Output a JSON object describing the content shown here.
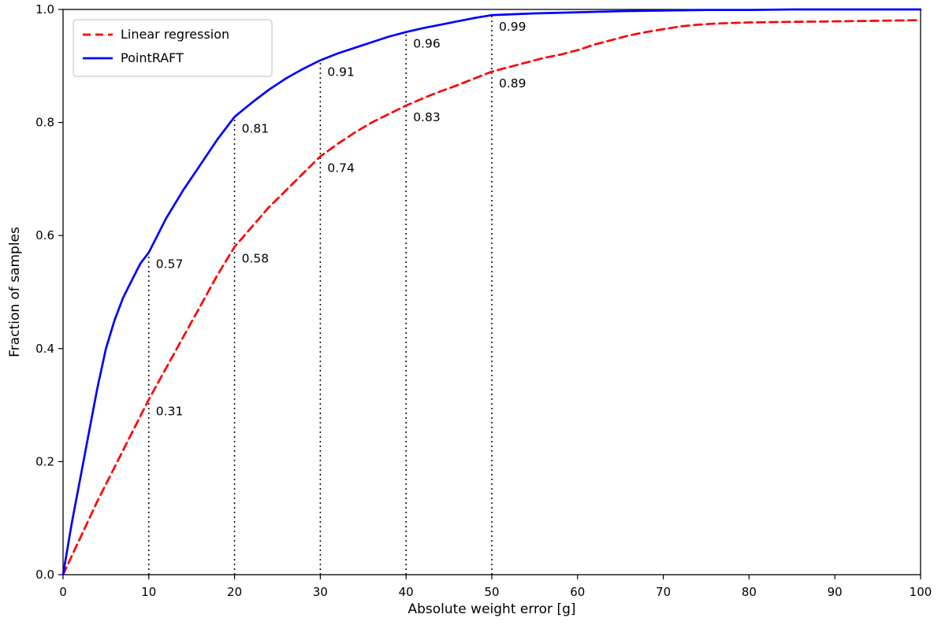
{
  "chart_data": {
    "type": "line",
    "title": "",
    "xlabel": "Absolute weight error [g]",
    "ylabel": "Fraction of samples",
    "xlim": [
      0,
      100
    ],
    "ylim": [
      0.0,
      1.0
    ],
    "x_ticks": [
      0,
      10,
      20,
      30,
      40,
      50,
      60,
      70,
      80,
      90,
      100
    ],
    "y_ticks": [
      0.0,
      0.2,
      0.4,
      0.6,
      0.8,
      1.0
    ],
    "grid": false,
    "legend_position": "upper-left",
    "series": [
      {
        "name": "Linear regression",
        "color": "#ff0000",
        "style": "dashed",
        "x": [
          0,
          2,
          4,
          6,
          8,
          10,
          12,
          14,
          16,
          18,
          20,
          22,
          24,
          26,
          28,
          30,
          32,
          34,
          36,
          38,
          40,
          42,
          44,
          46,
          48,
          50,
          52,
          54,
          56,
          58,
          60,
          62,
          64,
          66,
          68,
          70,
          72,
          74,
          76,
          78,
          80,
          85,
          90,
          95,
          100
        ],
        "y": [
          0.0,
          0.065,
          0.13,
          0.19,
          0.25,
          0.31,
          0.365,
          0.42,
          0.475,
          0.53,
          0.58,
          0.615,
          0.65,
          0.68,
          0.71,
          0.74,
          0.762,
          0.782,
          0.8,
          0.815,
          0.83,
          0.843,
          0.855,
          0.866,
          0.878,
          0.89,
          0.898,
          0.906,
          0.914,
          0.92,
          0.928,
          0.938,
          0.946,
          0.954,
          0.96,
          0.965,
          0.97,
          0.973,
          0.975,
          0.976,
          0.977,
          0.978,
          0.979,
          0.98,
          0.981
        ]
      },
      {
        "name": "PointRAFT",
        "color": "#0000ff",
        "style": "solid",
        "x": [
          0,
          1,
          2,
          3,
          4,
          5,
          6,
          7,
          8,
          9,
          10,
          12,
          14,
          16,
          18,
          20,
          22,
          24,
          26,
          28,
          30,
          32,
          34,
          36,
          38,
          40,
          42,
          44,
          46,
          48,
          50,
          55,
          60,
          65,
          70,
          75,
          80,
          85,
          90,
          95,
          100
        ],
        "y": [
          0.0,
          0.09,
          0.17,
          0.25,
          0.33,
          0.4,
          0.45,
          0.49,
          0.52,
          0.55,
          0.57,
          0.63,
          0.68,
          0.725,
          0.77,
          0.81,
          0.835,
          0.858,
          0.878,
          0.895,
          0.91,
          0.922,
          0.932,
          0.942,
          0.952,
          0.96,
          0.967,
          0.973,
          0.979,
          0.985,
          0.99,
          0.993,
          0.995,
          0.997,
          0.998,
          0.999,
          0.999,
          1.0,
          1.0,
          1.0,
          1.0
        ]
      }
    ],
    "markers": [
      {
        "x": 10,
        "pointraft": 0.57,
        "linreg": 0.31
      },
      {
        "x": 20,
        "pointraft": 0.81,
        "linreg": 0.58
      },
      {
        "x": 30,
        "pointraft": 0.91,
        "linreg": 0.74
      },
      {
        "x": 40,
        "pointraft": 0.96,
        "linreg": 0.83
      },
      {
        "x": 50,
        "pointraft": 0.99,
        "linreg": 0.89
      }
    ],
    "marker_line_color": "#000000",
    "pointraft_label_color": "#0000ff",
    "linreg_label_color": "#ff0000"
  }
}
